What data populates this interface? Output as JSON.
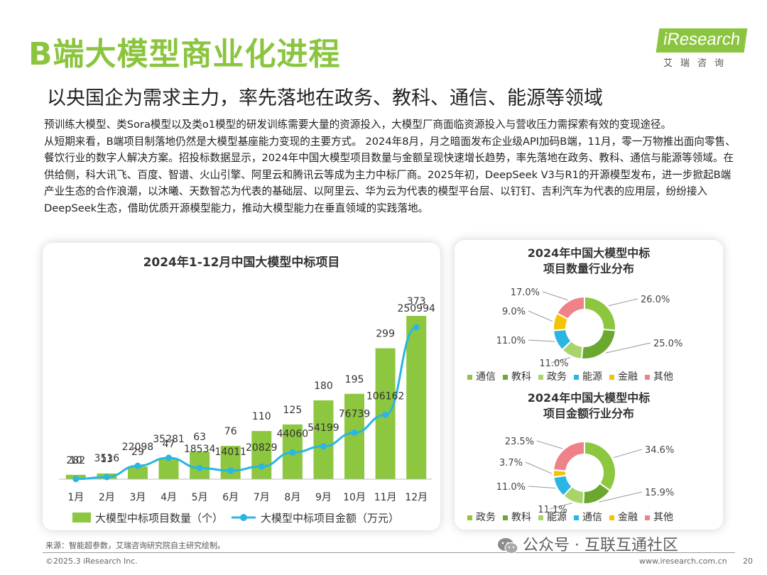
{
  "header": {
    "title": "B端大模型商业化进程",
    "subtitle": "以央国企为需求主力，率先落地在政务、教科、通信、能源等领域",
    "logo_main": "iResearch",
    "logo_sub": "艾瑞咨询"
  },
  "intro": {
    "paragraph1": "预训练大模型、类Sora模型以及类o1模型的研发训练需要大量的资源投入，大模型厂商面临资源投入与营收压力需探索有效的变现途径。",
    "paragraph2": "从短期来看，B端项目制落地仍然是大模型基座能力变现的主要方式。 2024年8月，月之暗面发布企业级API加码B端，11月，零一万物推出面向零售、餐饮行业的数字人解决方案。招投标数据显示，2024年中国大模型项目数量与金额呈现快速增长趋势，率先落地在政务、教科、通信与能源等领域。在供给侧，科大讯飞、百度、智谱、火山引擎、阿里云和腾讯云等成为主力中标厂商。2025年初，DeepSeek V3与R1的开源模型发布，进一步掀起B端产业生态的合作浪潮，以沐曦、天数智芯为代表的基础层、以阿里云、华为云为代表的模型平台层、以钉钉、吉利汽车为代表的应用层，纷纷接入DeepSeek生态，借助优质开源模型能力，推动大模型能力在垂直领域的实践落地。"
  },
  "colors": {
    "brand_green": "#8bc53f",
    "bar_green": "#8dc63f",
    "line_blue": "#29b6e3",
    "blue": "#29b6e3",
    "yellow": "#f5c400",
    "pink": "#ef8288",
    "dark_green": "#6aa82f"
  },
  "chart_data": [
    {
      "type": "bar+line",
      "title": "2024年1-12月中国大模型中标项目",
      "categories": [
        "1月",
        "2月",
        "3月",
        "4月",
        "5月",
        "6月",
        "7月",
        "8月",
        "9月",
        "10月",
        "11月",
        "12月"
      ],
      "series": [
        {
          "name": "大模型中标项目数量（个）",
          "type": "bar",
          "values": [
            10,
            13,
            29,
            47,
            63,
            76,
            110,
            125,
            180,
            195,
            299,
            373
          ]
        },
        {
          "name": "大模型中标项目金额（万元）",
          "type": "line",
          "values": [
            282,
            3516,
            22098,
            35281,
            18534,
            14011,
            20829,
            44060,
            54199,
            76739,
            106162,
            250994
          ]
        }
      ],
      "bar_ylim": [
        0,
        373
      ],
      "line_ylim": [
        0,
        250994
      ]
    },
    {
      "type": "pie",
      "title_line1": "2024年中国大模型中标",
      "title_line2": "项目数量行业分布",
      "slices": [
        {
          "name": "通信",
          "value": 26.0,
          "label": "26.0%",
          "color": "#8dc63f"
        },
        {
          "name": "教科",
          "value": 25.0,
          "label": "25.0%",
          "color": "#6aa82f"
        },
        {
          "name": "政务",
          "value": 11.0,
          "label": "11.0%",
          "color": "#a9d46b"
        },
        {
          "name": "能源",
          "value": 11.0,
          "label": "11.0%",
          "color": "#29b6e3"
        },
        {
          "name": "金融",
          "value": 9.0,
          "label": "9.0%",
          "color": "#f5c400"
        },
        {
          "name": "其他",
          "value": 17.0,
          "label": "17.0%",
          "color": "#ef8288"
        }
      ]
    },
    {
      "type": "pie",
      "title_line1": "2024年中国大模型中标",
      "title_line2": "项目金额行业分布",
      "slices": [
        {
          "name": "政务",
          "value": 34.6,
          "label": "34.6%",
          "color": "#8dc63f"
        },
        {
          "name": "教科",
          "value": 15.9,
          "label": "15.9%",
          "color": "#6aa82f"
        },
        {
          "name": "能源",
          "value": 11.1,
          "label": "11.1%",
          "color": "#a9d46b"
        },
        {
          "name": "通信",
          "value": 11.0,
          "label": "11.0%",
          "color": "#29b6e3"
        },
        {
          "name": "金融",
          "value": 3.7,
          "label": "3.7%",
          "color": "#f5c400"
        },
        {
          "name": "其他",
          "value": 23.5,
          "label": "23.5%",
          "color": "#ef8288"
        }
      ]
    }
  ],
  "footer": {
    "source": "来源：智能超参数，艾瑞咨询研究院自主研究绘制。",
    "copyright": "©2025.3 iResearch Inc.",
    "website": "www.iresearch.com.cn",
    "page": "20",
    "watermark": "公众号 · 互联互通社区"
  }
}
